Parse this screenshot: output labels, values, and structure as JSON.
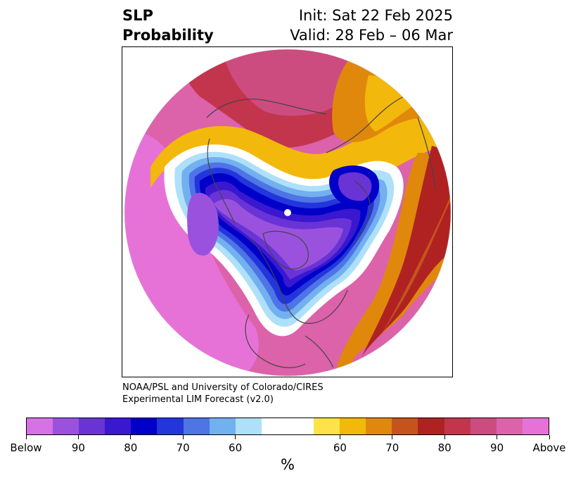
{
  "title": {
    "left_line1": "SLP",
    "left_line2": "Probability",
    "right_line1": "Init: Sat 22 Feb 2025",
    "right_line2": "Valid: 28 Feb – 06 Mar"
  },
  "credit": {
    "line1": "NOAA/PSL and University of Colorado/CIRES",
    "line2": "Experimental LIM Forecast (v2.0)"
  },
  "colorbar": {
    "colors": [
      "#d672e6",
      "#9a52de",
      "#6a33d6",
      "#3a18d0",
      "#0000c8",
      "#2236dc",
      "#4e74e6",
      "#72b0f0",
      "#aee0fa",
      "#ffffff",
      "#ffffff",
      "#ffe24a",
      "#f2b80c",
      "#e0880c",
      "#c4541c",
      "#b02222",
      "#c2354c",
      "#cc4c80",
      "#dc62aa",
      "#e672d8"
    ],
    "labels": [
      "Below",
      "90",
      "80",
      "70",
      "60",
      "60",
      "70",
      "80",
      "90",
      "Above"
    ],
    "unit": "%"
  },
  "map": {
    "projection": "north-polar-stereographic",
    "field": "Sea level pressure probability"
  }
}
